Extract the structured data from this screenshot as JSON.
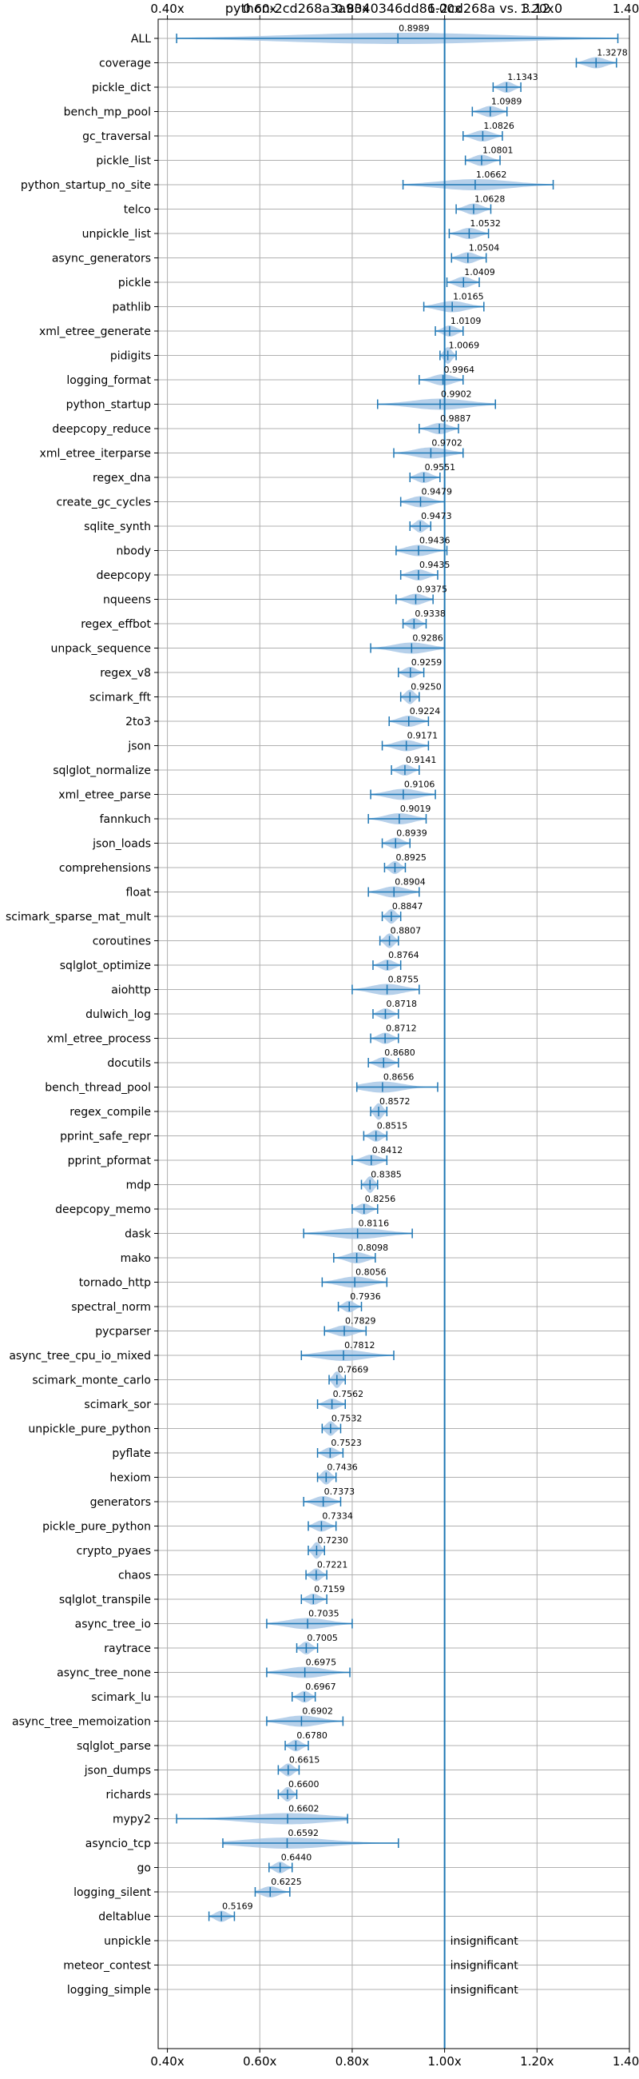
{
  "chart_data": {
    "type": "violin",
    "title": "python-2cd268a3a9340346dd86-2cd268a vs. 3.12.0",
    "xlim": [
      0.38,
      1.4
    ],
    "x_ticks": [
      0.4,
      0.6,
      0.8,
      1.0,
      1.2,
      1.4
    ],
    "x_tick_labels": [
      "0.40x",
      "0.60x",
      "0.80x",
      "1.00x",
      "1.20x",
      "1.40x"
    ],
    "reference_line": 1.0,
    "grid": true,
    "colors": {
      "violin": "#a9c8e6",
      "line": "#1f77b4",
      "grid": "#b0b0b0"
    },
    "benchmarks": [
      {
        "name": "ALL",
        "value": 0.8989,
        "min": 0.42,
        "max": 1.375,
        "label": "0.8989"
      },
      {
        "name": "coverage",
        "value": 1.3278,
        "min": 1.285,
        "max": 1.372,
        "label": "1.3278"
      },
      {
        "name": "pickle_dict",
        "value": 1.1343,
        "min": 1.105,
        "max": 1.165,
        "label": "1.1343"
      },
      {
        "name": "bench_mp_pool",
        "value": 1.0989,
        "min": 1.06,
        "max": 1.135,
        "label": "1.0989"
      },
      {
        "name": "gc_traversal",
        "value": 1.0826,
        "min": 1.04,
        "max": 1.125,
        "label": "1.0826"
      },
      {
        "name": "pickle_list",
        "value": 1.0801,
        "min": 1.045,
        "max": 1.12,
        "label": "1.0801"
      },
      {
        "name": "python_startup_no_site",
        "value": 1.0662,
        "min": 0.91,
        "max": 1.235,
        "label": "1.0662"
      },
      {
        "name": "telco",
        "value": 1.0628,
        "min": 1.025,
        "max": 1.1,
        "label": "1.0628"
      },
      {
        "name": "unpickle_list",
        "value": 1.0532,
        "min": 1.01,
        "max": 1.095,
        "label": "1.0532"
      },
      {
        "name": "async_generators",
        "value": 1.0504,
        "min": 1.015,
        "max": 1.09,
        "label": "1.0504"
      },
      {
        "name": "pickle",
        "value": 1.0409,
        "min": 1.005,
        "max": 1.075,
        "label": "1.0409"
      },
      {
        "name": "pathlib",
        "value": 1.0165,
        "min": 0.955,
        "max": 1.085,
        "label": "1.0165"
      },
      {
        "name": "xml_etree_generate",
        "value": 1.0109,
        "min": 0.98,
        "max": 1.04,
        "label": "1.0109"
      },
      {
        "name": "pidigits",
        "value": 1.0069,
        "min": 0.99,
        "max": 1.025,
        "label": "1.0069"
      },
      {
        "name": "logging_format",
        "value": 0.9964,
        "min": 0.945,
        "max": 1.04,
        "label": "0.9964"
      },
      {
        "name": "python_startup",
        "value": 0.9902,
        "min": 0.855,
        "max": 1.11,
        "label": "0.9902"
      },
      {
        "name": "deepcopy_reduce",
        "value": 0.9887,
        "min": 0.945,
        "max": 1.03,
        "label": "0.9887"
      },
      {
        "name": "xml_etree_iterparse",
        "value": 0.9702,
        "min": 0.89,
        "max": 1.04,
        "label": "0.9702"
      },
      {
        "name": "regex_dna",
        "value": 0.9551,
        "min": 0.925,
        "max": 0.99,
        "label": "0.9551"
      },
      {
        "name": "create_gc_cycles",
        "value": 0.9479,
        "min": 0.905,
        "max": 1.0,
        "label": "0.9479"
      },
      {
        "name": "sqlite_synth",
        "value": 0.9473,
        "min": 0.925,
        "max": 0.97,
        "label": "0.9473"
      },
      {
        "name": "nbody",
        "value": 0.9436,
        "min": 0.895,
        "max": 1.005,
        "label": "0.9436"
      },
      {
        "name": "deepcopy",
        "value": 0.9435,
        "min": 0.905,
        "max": 0.985,
        "label": "0.9435"
      },
      {
        "name": "nqueens",
        "value": 0.9375,
        "min": 0.895,
        "max": 0.975,
        "label": "0.9375"
      },
      {
        "name": "regex_effbot",
        "value": 0.9338,
        "min": 0.91,
        "max": 0.96,
        "label": "0.9338"
      },
      {
        "name": "unpack_sequence",
        "value": 0.9286,
        "min": 0.84,
        "max": 1.0,
        "label": "0.9286"
      },
      {
        "name": "regex_v8",
        "value": 0.9259,
        "min": 0.9,
        "max": 0.955,
        "label": "0.9259"
      },
      {
        "name": "scimark_fft",
        "value": 0.925,
        "min": 0.905,
        "max": 0.945,
        "label": "0.9250"
      },
      {
        "name": "2to3",
        "value": 0.9224,
        "min": 0.88,
        "max": 0.965,
        "label": "0.9224"
      },
      {
        "name": "json",
        "value": 0.9171,
        "min": 0.865,
        "max": 0.965,
        "label": "0.9171"
      },
      {
        "name": "sqlglot_normalize",
        "value": 0.9141,
        "min": 0.885,
        "max": 0.945,
        "label": "0.9141"
      },
      {
        "name": "xml_etree_parse",
        "value": 0.9106,
        "min": 0.84,
        "max": 0.98,
        "label": "0.9106"
      },
      {
        "name": "fannkuch",
        "value": 0.9019,
        "min": 0.835,
        "max": 0.96,
        "label": "0.9019"
      },
      {
        "name": "json_loads",
        "value": 0.8939,
        "min": 0.865,
        "max": 0.925,
        "label": "0.8939"
      },
      {
        "name": "comprehensions",
        "value": 0.8925,
        "min": 0.87,
        "max": 0.915,
        "label": "0.8925"
      },
      {
        "name": "float",
        "value": 0.8904,
        "min": 0.835,
        "max": 0.945,
        "label": "0.8904"
      },
      {
        "name": "scimark_sparse_mat_mult",
        "value": 0.8847,
        "min": 0.865,
        "max": 0.905,
        "label": "0.8847"
      },
      {
        "name": "coroutines",
        "value": 0.8807,
        "min": 0.86,
        "max": 0.9,
        "label": "0.8807"
      },
      {
        "name": "sqlglot_optimize",
        "value": 0.8764,
        "min": 0.845,
        "max": 0.905,
        "label": "0.8764"
      },
      {
        "name": "aiohttp",
        "value": 0.8755,
        "min": 0.8,
        "max": 0.945,
        "label": "0.8755"
      },
      {
        "name": "dulwich_log",
        "value": 0.8718,
        "min": 0.845,
        "max": 0.9,
        "label": "0.8718"
      },
      {
        "name": "xml_etree_process",
        "value": 0.8712,
        "min": 0.84,
        "max": 0.9,
        "label": "0.8712"
      },
      {
        "name": "docutils",
        "value": 0.868,
        "min": 0.835,
        "max": 0.9,
        "label": "0.8680"
      },
      {
        "name": "bench_thread_pool",
        "value": 0.8656,
        "min": 0.81,
        "max": 0.985,
        "label": "0.8656"
      },
      {
        "name": "regex_compile",
        "value": 0.8572,
        "min": 0.84,
        "max": 0.875,
        "label": "0.8572"
      },
      {
        "name": "pprint_safe_repr",
        "value": 0.8515,
        "min": 0.825,
        "max": 0.875,
        "label": "0.8515"
      },
      {
        "name": "pprint_pformat",
        "value": 0.8412,
        "min": 0.8,
        "max": 0.875,
        "label": "0.8412"
      },
      {
        "name": "mdp",
        "value": 0.8385,
        "min": 0.82,
        "max": 0.855,
        "label": "0.8385"
      },
      {
        "name": "deepcopy_memo",
        "value": 0.8256,
        "min": 0.8,
        "max": 0.855,
        "label": "0.8256"
      },
      {
        "name": "dask",
        "value": 0.8116,
        "min": 0.695,
        "max": 0.93,
        "label": "0.8116"
      },
      {
        "name": "mako",
        "value": 0.8098,
        "min": 0.76,
        "max": 0.85,
        "label": "0.8098"
      },
      {
        "name": "tornado_http",
        "value": 0.8056,
        "min": 0.735,
        "max": 0.875,
        "label": "0.8056"
      },
      {
        "name": "spectral_norm",
        "value": 0.7936,
        "min": 0.77,
        "max": 0.82,
        "label": "0.7936"
      },
      {
        "name": "pycparser",
        "value": 0.7829,
        "min": 0.74,
        "max": 0.83,
        "label": "0.7829"
      },
      {
        "name": "async_tree_cpu_io_mixed",
        "value": 0.7812,
        "min": 0.69,
        "max": 0.89,
        "label": "0.7812"
      },
      {
        "name": "scimark_monte_carlo",
        "value": 0.7669,
        "min": 0.75,
        "max": 0.785,
        "label": "0.7669"
      },
      {
        "name": "scimark_sor",
        "value": 0.7562,
        "min": 0.725,
        "max": 0.785,
        "label": "0.7562"
      },
      {
        "name": "unpickle_pure_python",
        "value": 0.7532,
        "min": 0.735,
        "max": 0.775,
        "label": "0.7532"
      },
      {
        "name": "pyflate",
        "value": 0.7523,
        "min": 0.725,
        "max": 0.78,
        "label": "0.7523"
      },
      {
        "name": "hexiom",
        "value": 0.7436,
        "min": 0.725,
        "max": 0.765,
        "label": "0.7436"
      },
      {
        "name": "generators",
        "value": 0.7373,
        "min": 0.695,
        "max": 0.775,
        "label": "0.7373"
      },
      {
        "name": "pickle_pure_python",
        "value": 0.7334,
        "min": 0.705,
        "max": 0.765,
        "label": "0.7334"
      },
      {
        "name": "crypto_pyaes",
        "value": 0.723,
        "min": 0.705,
        "max": 0.74,
        "label": "0.7230"
      },
      {
        "name": "chaos",
        "value": 0.7221,
        "min": 0.7,
        "max": 0.745,
        "label": "0.7221"
      },
      {
        "name": "sqlglot_transpile",
        "value": 0.7159,
        "min": 0.69,
        "max": 0.745,
        "label": "0.7159"
      },
      {
        "name": "async_tree_io",
        "value": 0.7035,
        "min": 0.615,
        "max": 0.8,
        "label": "0.7035"
      },
      {
        "name": "raytrace",
        "value": 0.7005,
        "min": 0.68,
        "max": 0.725,
        "label": "0.7005"
      },
      {
        "name": "async_tree_none",
        "value": 0.6975,
        "min": 0.615,
        "max": 0.795,
        "label": "0.6975"
      },
      {
        "name": "scimark_lu",
        "value": 0.6967,
        "min": 0.67,
        "max": 0.72,
        "label": "0.6967"
      },
      {
        "name": "async_tree_memoization",
        "value": 0.6902,
        "min": 0.615,
        "max": 0.78,
        "label": "0.6902"
      },
      {
        "name": "sqlglot_parse",
        "value": 0.678,
        "min": 0.655,
        "max": 0.705,
        "label": "0.6780"
      },
      {
        "name": "json_dumps",
        "value": 0.6615,
        "min": 0.64,
        "max": 0.685,
        "label": "0.6615"
      },
      {
        "name": "richards",
        "value": 0.66,
        "min": 0.64,
        "max": 0.68,
        "label": "0.6600"
      },
      {
        "name": "mypy2",
        "value": 0.6602,
        "min": 0.42,
        "max": 0.79,
        "label": "0.6602"
      },
      {
        "name": "asyncio_tcp",
        "value": 0.6592,
        "min": 0.52,
        "max": 0.9,
        "label": "0.6592"
      },
      {
        "name": "go",
        "value": 0.644,
        "min": 0.62,
        "max": 0.67,
        "label": "0.6440"
      },
      {
        "name": "logging_silent",
        "value": 0.6225,
        "min": 0.59,
        "max": 0.665,
        "label": "0.6225"
      },
      {
        "name": "deltablue",
        "value": 0.5169,
        "min": 0.49,
        "max": 0.545,
        "label": "0.5169"
      },
      {
        "name": "unpickle",
        "value": null,
        "min": null,
        "max": null,
        "label": "insignificant"
      },
      {
        "name": "meteor_contest",
        "value": null,
        "min": null,
        "max": null,
        "label": "insignificant"
      },
      {
        "name": "logging_simple",
        "value": null,
        "min": null,
        "max": null,
        "label": "insignificant"
      }
    ]
  }
}
